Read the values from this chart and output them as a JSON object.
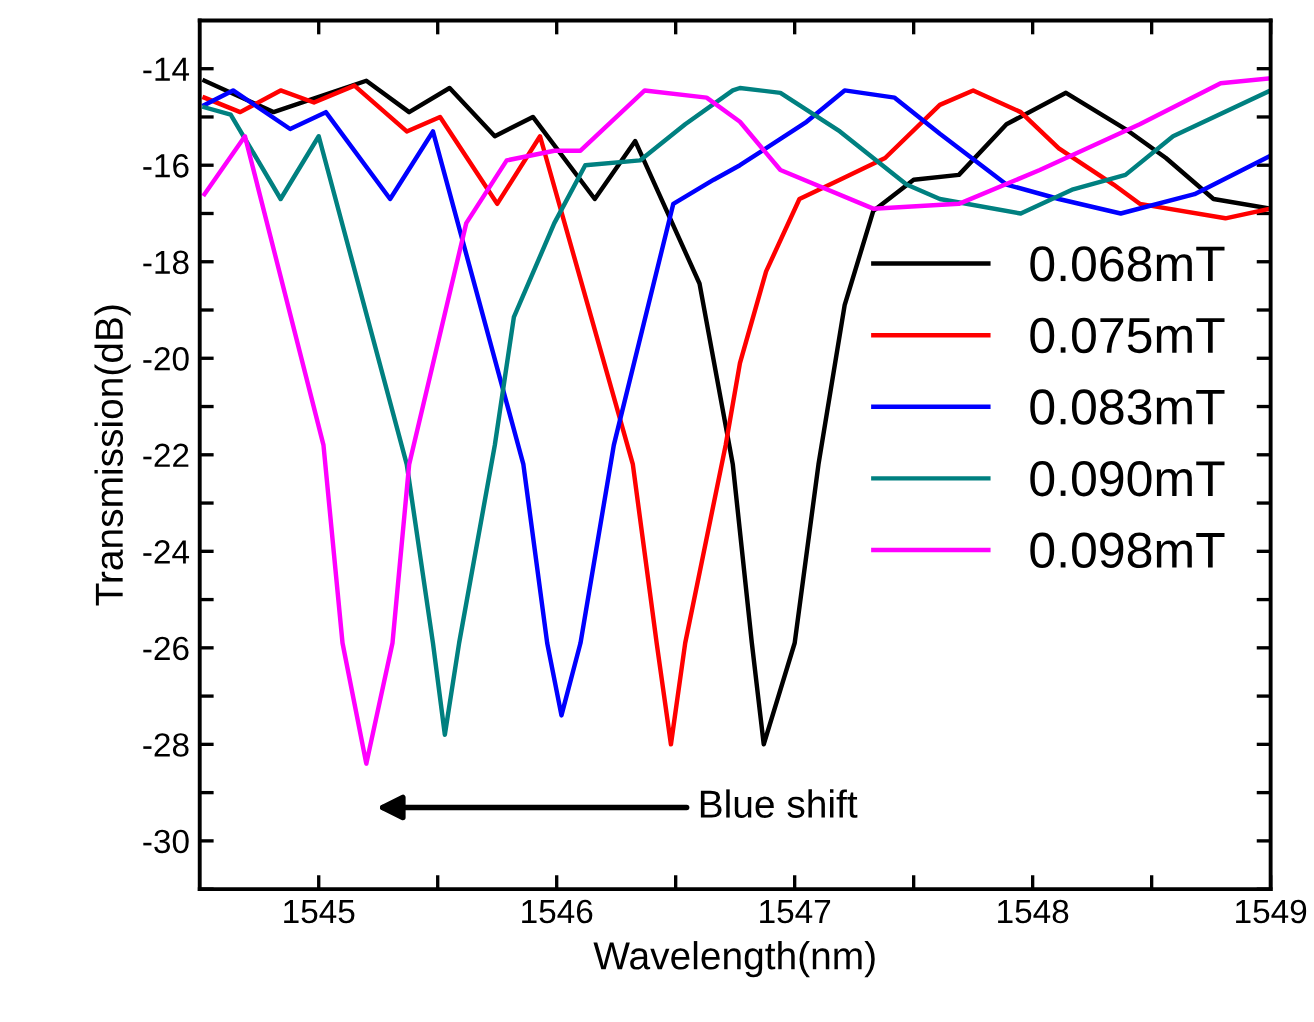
{
  "chart_data": {
    "type": "line",
    "xlabel": "Wavelength(nm)",
    "ylabel": "Transmission(dB)",
    "xlim": [
      1544.5,
      1549
    ],
    "ylim": [
      -31,
      -13
    ],
    "xticks": [
      1545,
      1546,
      1547,
      1548,
      1549,
      {
        "value": 1545.5,
        "label": null
      },
      {
        "value": 1546.5,
        "label": null
      },
      {
        "value": 1547.5,
        "label": null
      },
      {
        "value": 1548.5,
        "label": null
      }
    ],
    "yticks": [
      -30,
      -28,
      -26,
      -24,
      -22,
      -20,
      -18,
      -16,
      -14,
      {
        "value": -31,
        "label": null
      },
      {
        "value": -29,
        "label": null
      },
      {
        "value": -27,
        "label": null
      },
      {
        "value": -25,
        "label": null
      },
      {
        "value": -23,
        "label": null
      },
      {
        "value": -21,
        "label": null
      },
      {
        "value": -19,
        "label": null
      },
      {
        "value": -17,
        "label": null
      },
      {
        "value": -15,
        "label": null
      }
    ],
    "grid": false,
    "legend": "center right",
    "marker": "none",
    "line_style": "solid",
    "annotations": [
      "Blue shift"
    ],
    "series": [
      {
        "name": "0.068mT",
        "color": "#000000",
        "x": [
          1544.52,
          1544.81,
          1545.2,
          1545.38,
          1545.55,
          1545.74,
          1545.9,
          1546.16,
          1546.33,
          1546.6,
          1546.74,
          1546.82,
          1546.87,
          1547.0,
          1547.1,
          1547.21,
          1547.33,
          1547.5,
          1547.69,
          1547.89,
          1548.14,
          1548.39,
          1548.56,
          1548.76,
          1549.0
        ],
        "values": [
          -14.25,
          -14.9,
          -14.25,
          -14.9,
          -14.4,
          -15.4,
          -15.0,
          -16.7,
          -15.5,
          -18.45,
          -22.2,
          -25.9,
          -28.0,
          -25.9,
          -22.2,
          -18.9,
          -16.95,
          -16.3,
          -16.2,
          -15.15,
          -14.5,
          -15.25,
          -15.85,
          -16.7,
          -16.9
        ]
      },
      {
        "name": "0.075mT",
        "color": "#ff0000",
        "x": [
          1544.52,
          1544.67,
          1544.84,
          1544.98,
          1545.15,
          1545.37,
          1545.51,
          1545.75,
          1545.93,
          1546.32,
          1546.42,
          1546.48,
          1546.54,
          1546.71,
          1546.77,
          1546.88,
          1547.02,
          1547.19,
          1547.38,
          1547.61,
          1547.75,
          1547.95,
          1548.11,
          1548.34,
          1548.45,
          1548.81,
          1549.0
        ],
        "values": [
          -14.6,
          -14.9,
          -14.45,
          -14.7,
          -14.35,
          -15.3,
          -15.0,
          -16.8,
          -15.4,
          -22.2,
          -25.9,
          -28.0,
          -25.9,
          -21.8,
          -20.1,
          -18.2,
          -16.7,
          -16.3,
          -15.85,
          -14.75,
          -14.45,
          -14.9,
          -15.65,
          -16.4,
          -16.8,
          -17.1,
          -16.9
        ]
      },
      {
        "name": "0.083mT",
        "color": "#0000ff",
        "x": [
          1544.52,
          1544.64,
          1544.88,
          1545.03,
          1545.3,
          1545.48,
          1545.86,
          1545.96,
          1546.02,
          1546.1,
          1546.24,
          1546.49,
          1546.66,
          1546.77,
          1547.05,
          1547.21,
          1547.42,
          1547.61,
          1547.89,
          1548.11,
          1548.37,
          1548.68,
          1549.0
        ],
        "values": [
          -14.75,
          -14.45,
          -15.25,
          -14.9,
          -16.7,
          -15.3,
          -22.2,
          -25.9,
          -27.4,
          -25.9,
          -21.8,
          -16.8,
          -16.3,
          -16.0,
          -15.1,
          -14.45,
          -14.6,
          -15.35,
          -16.4,
          -16.7,
          -17.0,
          -16.6,
          -15.8
        ]
      },
      {
        "name": "0.090mT",
        "color": "#008080",
        "x": [
          1544.52,
          1544.63,
          1544.84,
          1545.0,
          1545.37,
          1545.48,
          1545.53,
          1545.59,
          1545.74,
          1545.82,
          1545.99,
          1546.12,
          1546.35,
          1546.54,
          1546.74,
          1546.77,
          1546.94,
          1547.19,
          1547.47,
          1547.61,
          1547.95,
          1548.17,
          1548.39,
          1548.59,
          1549.0
        ],
        "values": [
          -14.8,
          -14.95,
          -16.7,
          -15.4,
          -22.2,
          -25.9,
          -27.8,
          -25.9,
          -21.8,
          -19.15,
          -17.2,
          -16.0,
          -15.9,
          -15.15,
          -14.45,
          -14.4,
          -14.5,
          -15.3,
          -16.4,
          -16.7,
          -17.0,
          -16.5,
          -16.2,
          -15.4,
          -14.45
        ]
      },
      {
        "name": "0.098mT",
        "color": "#ff00ff",
        "x": [
          1544.52,
          1544.69,
          1545.02,
          1545.1,
          1545.2,
          1545.31,
          1545.38,
          1545.62,
          1545.79,
          1545.99,
          1546.1,
          1546.37,
          1546.63,
          1546.77,
          1546.94,
          1547.33,
          1547.69,
          1548.03,
          1548.45,
          1548.79,
          1549.0
        ],
        "values": [
          -16.6,
          -15.4,
          -21.8,
          -25.9,
          -28.4,
          -25.9,
          -22.2,
          -17.2,
          -15.9,
          -15.7,
          -15.7,
          -14.45,
          -14.6,
          -15.1,
          -16.1,
          -16.9,
          -16.8,
          -16.1,
          -15.15,
          -14.3,
          -14.2
        ]
      }
    ]
  }
}
